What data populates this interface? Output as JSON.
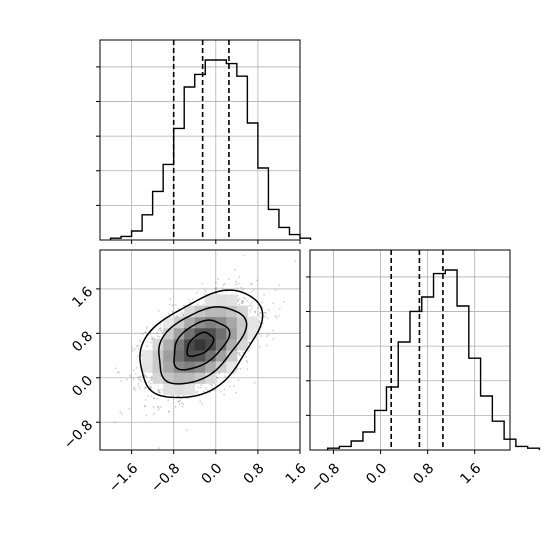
{
  "chart_data": [
    {
      "type": "histogram",
      "panel": "top-left",
      "x_range": [
        -2.2,
        1.6
      ],
      "x_ticks": [
        -1.6,
        -0.8,
        0.0,
        0.8,
        1.6
      ],
      "x_tick_labels": [],
      "y_tick_labels": [],
      "grid": true,
      "quantile_lines": [
        -0.8,
        -0.25,
        0.25
      ],
      "bins": {
        "start": -2.0,
        "width": 0.2,
        "counts": [
          0.01,
          0.02,
          0.05,
          0.14,
          0.27,
          0.42,
          0.62,
          0.85,
          0.92,
          1.0,
          1.0,
          0.98,
          0.91,
          0.65,
          0.4,
          0.17,
          0.07,
          0.03,
          0.01
        ]
      }
    },
    {
      "type": "histogram",
      "panel": "bottom-right",
      "x_range": [
        -1.2,
        2.2
      ],
      "x_ticks": [
        -0.8,
        0.0,
        0.8,
        1.6
      ],
      "x_tick_labels": [
        "−0.8",
        "0.0",
        "0.8",
        "1.6"
      ],
      "y_tick_labels": [],
      "grid": true,
      "quantile_lines": [
        0.18,
        0.66,
        1.06
      ],
      "bins": {
        "start": -0.9,
        "width": 0.2,
        "counts": [
          0.01,
          0.02,
          0.05,
          0.1,
          0.22,
          0.35,
          0.6,
          0.77,
          0.85,
          0.98,
          1.0,
          0.8,
          0.51,
          0.3,
          0.16,
          0.06,
          0.02,
          0.01
        ]
      }
    },
    {
      "type": "2d-density-contour",
      "panel": "bottom-left",
      "x_range": [
        -2.2,
        1.6
      ],
      "y_range": [
        -1.3,
        2.3
      ],
      "x_ticks": [
        -1.6,
        -0.8,
        0.0,
        0.8,
        1.6
      ],
      "y_ticks": [
        -0.8,
        0.0,
        0.8,
        1.6
      ],
      "x_tick_labels": [
        "−1.6",
        "−0.8",
        "0.0",
        "0.8",
        "1.6"
      ],
      "y_tick_labels": [
        "−0.8",
        "0.0",
        "0.8",
        "1.6"
      ],
      "grid": true,
      "center": [
        -0.3,
        0.6
      ],
      "contour_levels": 4
    }
  ]
}
